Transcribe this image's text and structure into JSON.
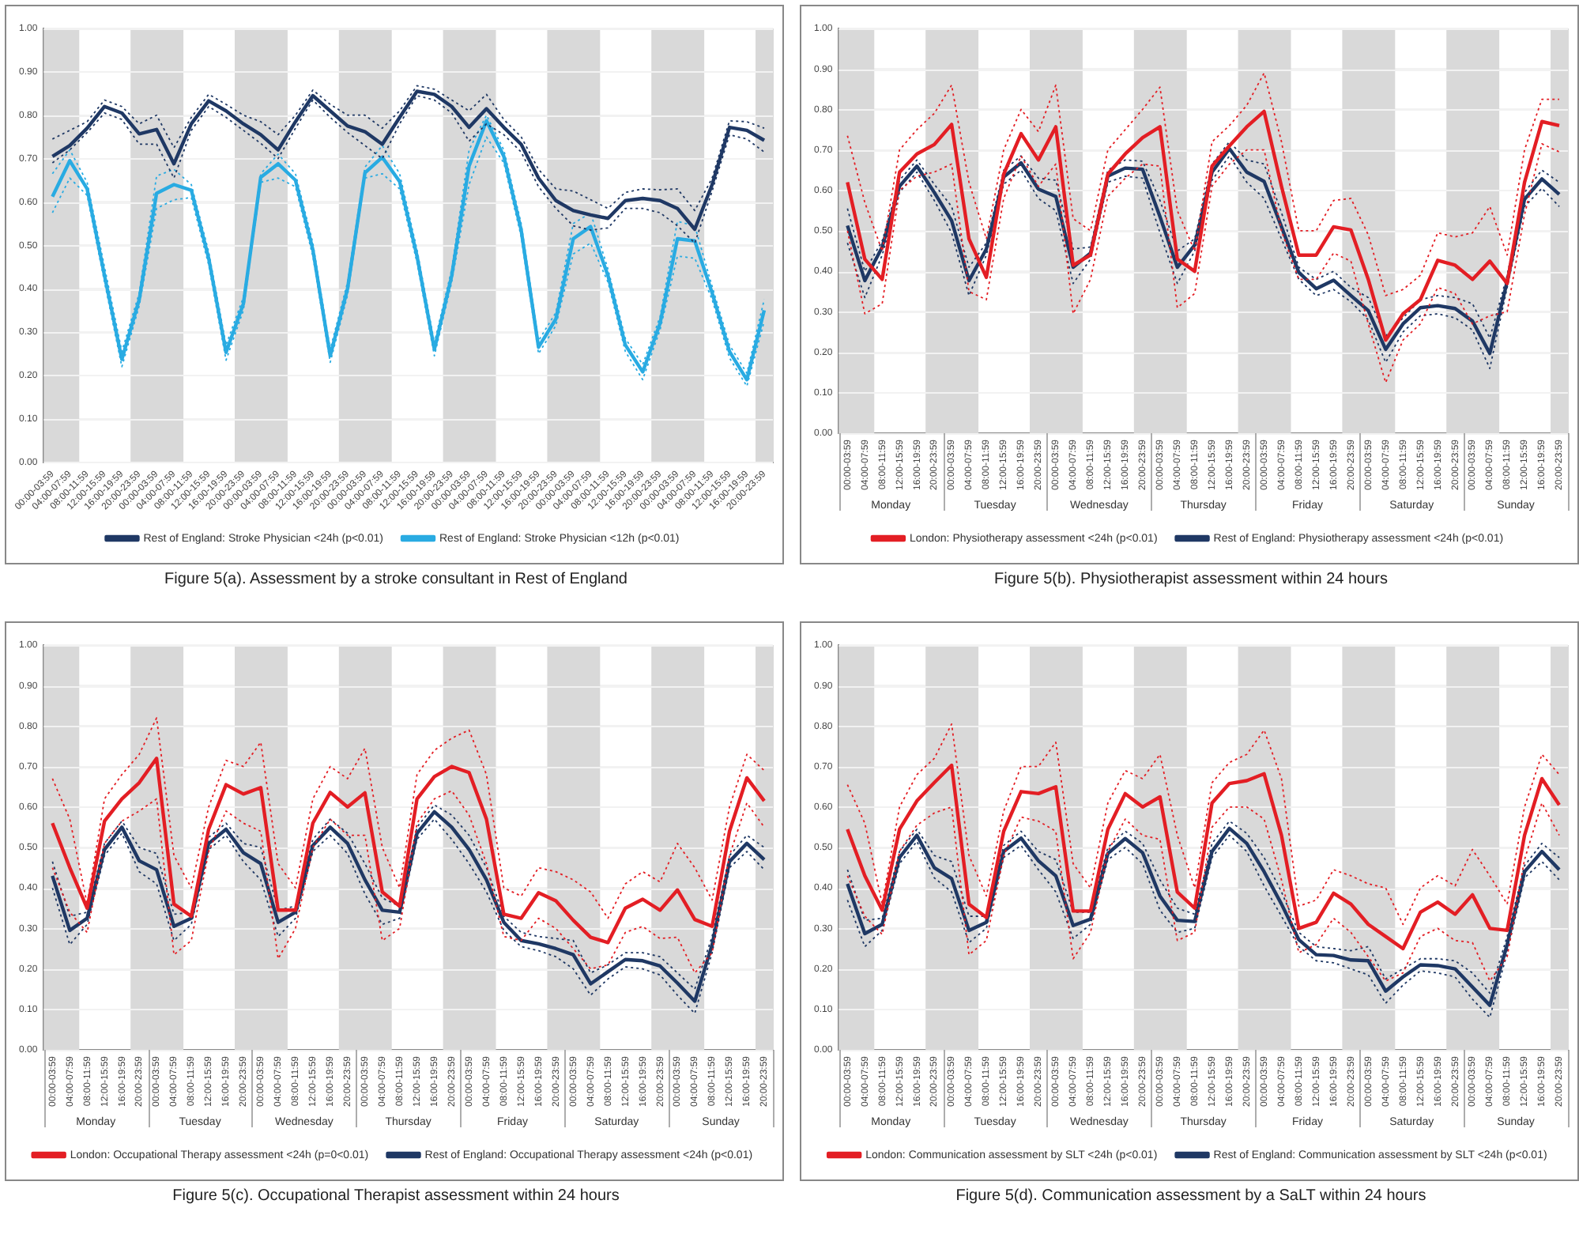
{
  "chart_data": [
    {
      "type": "line",
      "title": "Figure 5(a). Assessment by a stroke consultant in Rest of England",
      "categories": [
        "00:00-03:59",
        "04:00-07:59",
        "08:00-11:59",
        "12:00-15:59",
        "16:00-19:59",
        "20:00-23:59",
        "00:00-03:59",
        "04:00-07:59",
        "08:00-11:59",
        "12:00-15:59",
        "16:00-19:59",
        "20:00-23:59",
        "00:00-03:59",
        "04:00-07:59",
        "08:00-11:59",
        "12:00-15:59",
        "16:00-19:59",
        "20:00-23:59",
        "00:00-03:59",
        "04:00-07:59",
        "08:00-11:59",
        "12:00-15:59",
        "16:00-19:59",
        "20:00-23:59",
        "00:00-03:59",
        "04:00-07:59",
        "08:00-11:59",
        "12:00-15:59",
        "16:00-19:59",
        "20:00-23:59",
        "00:00-03:59",
        "04:00-07:59",
        "08:00-11:59",
        "12:00-15:59",
        "16:00-19:59",
        "20:00-23:59",
        "00:00-03:59",
        "04:00-07:59",
        "08:00-11:59",
        "12:00-15:59",
        "16:00-19:59",
        "20:00-23:59"
      ],
      "series": [
        {
          "name": "Rest of England: Stroke Physician <24h (p<0.01)",
          "color": "#1f3864",
          "line_style": "solid",
          "values": [
            0.705,
            0.73,
            0.77,
            0.82,
            0.805,
            0.757,
            0.767,
            0.688,
            0.78,
            0.833,
            0.81,
            0.78,
            0.755,
            0.72,
            0.785,
            0.845,
            0.81,
            0.775,
            0.762,
            0.733,
            0.795,
            0.855,
            0.848,
            0.82,
            0.772,
            0.815,
            0.772,
            0.733,
            0.655,
            0.603,
            0.58,
            0.57,
            0.562,
            0.603,
            0.608,
            0.603,
            0.585,
            0.537,
            0.64,
            0.772,
            0.765,
            0.742
          ]
        },
        {
          "color": "#1f3864",
          "line_style": "dotted",
          "values": [
            0.745,
            0.765,
            0.785,
            0.835,
            0.82,
            0.78,
            0.8,
            0.725,
            0.795,
            0.848,
            0.825,
            0.8,
            0.785,
            0.755,
            0.8,
            0.858,
            0.825,
            0.8,
            0.8,
            0.77,
            0.81,
            0.868,
            0.86,
            0.835,
            0.81,
            0.848,
            0.79,
            0.75,
            0.675,
            0.63,
            0.625,
            0.605,
            0.585,
            0.622,
            0.63,
            0.628,
            0.63,
            0.58,
            0.655,
            0.787,
            0.785,
            0.77
          ]
        },
        {
          "color": "#1f3864",
          "line_style": "dotted",
          "values": [
            0.69,
            0.72,
            0.76,
            0.805,
            0.79,
            0.733,
            0.733,
            0.655,
            0.765,
            0.82,
            0.795,
            0.765,
            0.735,
            0.7,
            0.77,
            0.835,
            0.795,
            0.76,
            0.73,
            0.7,
            0.78,
            0.845,
            0.835,
            0.805,
            0.74,
            0.78,
            0.755,
            0.715,
            0.635,
            0.585,
            0.545,
            0.535,
            0.54,
            0.585,
            0.585,
            0.575,
            0.545,
            0.505,
            0.625,
            0.755,
            0.745,
            0.715
          ]
        },
        {
          "name": "Rest of England: Stroke Physician <12h (p<0.01)",
          "color": "#29abe2",
          "line_style": "solid",
          "values": [
            0.612,
            0.695,
            0.63,
            0.43,
            0.237,
            0.375,
            0.62,
            0.64,
            0.627,
            0.47,
            0.253,
            0.365,
            0.657,
            0.688,
            0.65,
            0.49,
            0.245,
            0.4,
            0.667,
            0.703,
            0.647,
            0.475,
            0.26,
            0.43,
            0.683,
            0.787,
            0.705,
            0.535,
            0.265,
            0.33,
            0.515,
            0.543,
            0.43,
            0.27,
            0.208,
            0.32,
            0.515,
            0.51,
            0.39,
            0.255,
            0.19,
            0.35
          ]
        },
        {
          "color": "#29abe2",
          "line_style": "dotted",
          "values": [
            0.665,
            0.72,
            0.645,
            0.45,
            0.255,
            0.39,
            0.66,
            0.675,
            0.64,
            0.485,
            0.27,
            0.38,
            0.665,
            0.71,
            0.665,
            0.505,
            0.26,
            0.415,
            0.68,
            0.73,
            0.665,
            0.49,
            0.275,
            0.445,
            0.72,
            0.8,
            0.72,
            0.55,
            0.28,
            0.345,
            0.55,
            0.575,
            0.445,
            0.285,
            0.225,
            0.335,
            0.555,
            0.545,
            0.405,
            0.27,
            0.205,
            0.375
          ]
        },
        {
          "color": "#29abe2",
          "line_style": "dotted",
          "values": [
            0.575,
            0.655,
            0.615,
            0.415,
            0.22,
            0.36,
            0.585,
            0.605,
            0.61,
            0.455,
            0.235,
            0.35,
            0.645,
            0.655,
            0.635,
            0.475,
            0.23,
            0.385,
            0.655,
            0.665,
            0.63,
            0.46,
            0.245,
            0.415,
            0.64,
            0.75,
            0.69,
            0.52,
            0.25,
            0.315,
            0.48,
            0.505,
            0.415,
            0.255,
            0.19,
            0.305,
            0.475,
            0.47,
            0.375,
            0.24,
            0.175,
            0.325
          ]
        }
      ],
      "ylim": [
        0,
        1
      ],
      "yticks": [
        {
          "value": 0,
          "label": "0.00"
        },
        {
          "value": 0.1,
          "label": "0.10"
        },
        {
          "value": 0.2,
          "label": "0.20"
        },
        {
          "value": 0.3,
          "label": "0.30"
        },
        {
          "value": 0.4,
          "label": "0.40"
        },
        {
          "value": 0.5,
          "label": "0.50"
        },
        {
          "value": 0.6,
          "label": "0.60"
        },
        {
          "value": 0.7,
          "label": "0.70"
        },
        {
          "value": 0.8,
          "label": "0.80"
        },
        {
          "value": 0.9,
          "label": "0.90"
        },
        {
          "value": 1,
          "label": "1.00"
        }
      ],
      "grid": "y",
      "legend": "bottom",
      "marker": "none"
    },
    {
      "type": "line",
      "title": "Figure 5(b). Physiotherapist assessment within 24 hours",
      "categories": [
        "00:00-03:59",
        "04:00-07:59",
        "08:00-11:59",
        "12:00-15:59",
        "16:00-19:59",
        "20:00-23:59",
        "00:00-03:59",
        "04:00-07:59",
        "08:00-11:59",
        "12:00-15:59",
        "16:00-19:59",
        "20:00-23:59",
        "00:00-03:59",
        "04:00-07:59",
        "08:00-11:59",
        "12:00-15:59",
        "16:00-19:59",
        "20:00-23:59",
        "00:00-03:59",
        "04:00-07:59",
        "08:00-11:59",
        "12:00-15:59",
        "16:00-19:59",
        "20:00-23:59",
        "00:00-03:59",
        "04:00-07:59",
        "08:00-11:59",
        "12:00-15:59",
        "16:00-19:59",
        "20:00-23:59",
        "00:00-03:59",
        "04:00-07:59",
        "08:00-11:59",
        "12:00-15:59",
        "16:00-19:59",
        "20:00-23:59",
        "00:00-03:59",
        "04:00-07:59",
        "08:00-11:59",
        "12:00-15:59",
        "16:00-19:59",
        "20:00-23:59"
      ],
      "series": [
        {
          "name": "London: Physiotherapy assessment <24h (p<0.01)",
          "color": "#e31e24",
          "line_style": "solid",
          "values": [
            0.62,
            0.43,
            0.38,
            0.645,
            0.69,
            0.713,
            0.763,
            0.48,
            0.385,
            0.64,
            0.74,
            0.675,
            0.757,
            0.415,
            0.44,
            0.64,
            0.69,
            0.73,
            0.757,
            0.43,
            0.4,
            0.66,
            0.71,
            0.757,
            0.795,
            0.61,
            0.44,
            0.44,
            0.51,
            0.502,
            0.38,
            0.23,
            0.295,
            0.33,
            0.427,
            0.415,
            0.38,
            0.425,
            0.37,
            0.62,
            0.77,
            0.76
          ]
        },
        {
          "color": "#e31e24",
          "line_style": "dotted",
          "values": [
            0.735,
            0.57,
            0.45,
            0.7,
            0.75,
            0.79,
            0.86,
            0.62,
            0.48,
            0.7,
            0.8,
            0.745,
            0.86,
            0.53,
            0.5,
            0.7,
            0.75,
            0.8,
            0.855,
            0.55,
            0.45,
            0.72,
            0.76,
            0.81,
            0.89,
            0.72,
            0.5,
            0.5,
            0.575,
            0.58,
            0.49,
            0.34,
            0.355,
            0.39,
            0.495,
            0.485,
            0.495,
            0.56,
            0.44,
            0.7,
            0.825,
            0.825
          ]
        },
        {
          "color": "#e31e24",
          "line_style": "dotted",
          "values": [
            0.5,
            0.295,
            0.32,
            0.6,
            0.635,
            0.645,
            0.665,
            0.35,
            0.33,
            0.58,
            0.685,
            0.61,
            0.665,
            0.295,
            0.38,
            0.585,
            0.63,
            0.665,
            0.66,
            0.31,
            0.345,
            0.61,
            0.665,
            0.7,
            0.7,
            0.5,
            0.38,
            0.38,
            0.445,
            0.425,
            0.27,
            0.125,
            0.23,
            0.27,
            0.36,
            0.345,
            0.27,
            0.29,
            0.3,
            0.54,
            0.715,
            0.695
          ]
        },
        {
          "name": "Rest of England: Physiotherapy assessment <24h (p<0.01)",
          "color": "#1f3864",
          "line_style": "solid",
          "values": [
            0.513,
            0.377,
            0.46,
            0.61,
            0.66,
            0.595,
            0.525,
            0.377,
            0.455,
            0.633,
            0.668,
            0.603,
            0.585,
            0.41,
            0.445,
            0.635,
            0.655,
            0.652,
            0.535,
            0.41,
            0.465,
            0.645,
            0.703,
            0.645,
            0.622,
            0.51,
            0.397,
            0.357,
            0.378,
            0.34,
            0.303,
            0.207,
            0.27,
            0.31,
            0.315,
            0.308,
            0.277,
            0.197,
            0.375,
            0.578,
            0.628,
            0.59
          ]
        },
        {
          "color": "#1f3864",
          "line_style": "dotted",
          "values": [
            0.555,
            0.4,
            0.475,
            0.625,
            0.675,
            0.615,
            0.56,
            0.41,
            0.47,
            0.65,
            0.685,
            0.63,
            0.625,
            0.455,
            0.46,
            0.65,
            0.675,
            0.672,
            0.575,
            0.45,
            0.48,
            0.665,
            0.72,
            0.675,
            0.665,
            0.545,
            0.41,
            0.38,
            0.4,
            0.36,
            0.335,
            0.24,
            0.285,
            0.33,
            0.34,
            0.335,
            0.32,
            0.235,
            0.39,
            0.595,
            0.65,
            0.62
          ]
        },
        {
          "color": "#1f3864",
          "line_style": "dotted",
          "values": [
            0.47,
            0.335,
            0.44,
            0.595,
            0.645,
            0.575,
            0.495,
            0.34,
            0.44,
            0.615,
            0.65,
            0.58,
            0.55,
            0.37,
            0.43,
            0.62,
            0.635,
            0.63,
            0.495,
            0.37,
            0.45,
            0.625,
            0.685,
            0.62,
            0.58,
            0.48,
            0.38,
            0.34,
            0.355,
            0.325,
            0.28,
            0.175,
            0.25,
            0.29,
            0.295,
            0.285,
            0.255,
            0.16,
            0.36,
            0.56,
            0.605,
            0.56
          ]
        }
      ],
      "ylim": [
        0,
        1
      ],
      "yticks": [
        {
          "value": 0,
          "label": "0.00"
        },
        {
          "value": 0.1,
          "label": "0.10"
        },
        {
          "value": 0.2,
          "label": "0.20"
        },
        {
          "value": 0.3,
          "label": "0.30"
        },
        {
          "value": 0.4,
          "label": "0.40"
        },
        {
          "value": 0.5,
          "label": "0.50"
        },
        {
          "value": 0.6,
          "label": "0.60"
        },
        {
          "value": 0.7,
          "label": "0.70"
        },
        {
          "value": 0.8,
          "label": "0.80"
        },
        {
          "value": 0.9,
          "label": "0.90"
        },
        {
          "value": 1,
          "label": "1.00"
        }
      ],
      "grid": "y",
      "legend": "bottom",
      "marker": "none",
      "annotations": [
        "Monday",
        "Tuesday",
        "Wednesday",
        "Thursday",
        "Friday",
        "Saturday",
        "Sunday"
      ]
    },
    {
      "type": "line",
      "title": "Figure 5(c). Occupational Therapist assessment within 24 hours",
      "categories": [
        "00:00-03:59",
        "04:00-07:59",
        "08:00-11:59",
        "12:00-15:59",
        "16:00-19:59",
        "20:00-23:59",
        "00:00-03:59",
        "04:00-07:59",
        "08:00-11:59",
        "12:00-15:59",
        "16:00-19:59",
        "20:00-23:59",
        "00:00-03:59",
        "04:00-07:59",
        "08:00-11:59",
        "12:00-15:59",
        "16:00-19:59",
        "20:00-23:59",
        "00:00-03:59",
        "04:00-07:59",
        "08:00-11:59",
        "12:00-15:59",
        "16:00-19:59",
        "20:00-23:59",
        "00:00-03:59",
        "04:00-07:59",
        "08:00-11:59",
        "12:00-15:59",
        "16:00-19:59",
        "20:00-23:59",
        "00:00-03:59",
        "04:00-07:59",
        "08:00-11:59",
        "12:00-15:59",
        "16:00-19:59",
        "20:00-23:59",
        "00:00-03:59",
        "04:00-07:59",
        "08:00-11:59",
        "12:00-15:59",
        "16:00-19:59",
        "20:00-23:59"
      ],
      "series": [
        {
          "name": "London: Occupational Therapy assessment <24h (p=0<0.01)",
          "color": "#e31e24",
          "line_style": "solid",
          "values": [
            0.56,
            0.45,
            0.35,
            0.565,
            0.62,
            0.66,
            0.72,
            0.36,
            0.33,
            0.545,
            0.655,
            0.632,
            0.648,
            0.345,
            0.345,
            0.56,
            0.636,
            0.6,
            0.635,
            0.39,
            0.355,
            0.62,
            0.675,
            0.7,
            0.685,
            0.57,
            0.335,
            0.325,
            0.388,
            0.368,
            0.32,
            0.278,
            0.265,
            0.35,
            0.372,
            0.345,
            0.395,
            0.322,
            0.305,
            0.54,
            0.672,
            0.615
          ]
        },
        {
          "color": "#e31e24",
          "line_style": "dotted",
          "values": [
            0.67,
            0.57,
            0.36,
            0.62,
            0.68,
            0.73,
            0.82,
            0.48,
            0.4,
            0.6,
            0.715,
            0.7,
            0.76,
            0.46,
            0.4,
            0.62,
            0.7,
            0.67,
            0.745,
            0.5,
            0.4,
            0.68,
            0.74,
            0.77,
            0.79,
            0.68,
            0.4,
            0.38,
            0.45,
            0.44,
            0.42,
            0.39,
            0.325,
            0.41,
            0.44,
            0.415,
            0.51,
            0.45,
            0.37,
            0.6,
            0.73,
            0.69
          ]
        },
        {
          "color": "#e31e24",
          "line_style": "dotted",
          "values": [
            0.45,
            0.34,
            0.29,
            0.51,
            0.565,
            0.59,
            0.62,
            0.235,
            0.27,
            0.49,
            0.59,
            0.56,
            0.54,
            0.225,
            0.3,
            0.5,
            0.57,
            0.53,
            0.53,
            0.27,
            0.3,
            0.56,
            0.62,
            0.64,
            0.58,
            0.46,
            0.28,
            0.27,
            0.325,
            0.3,
            0.25,
            0.2,
            0.21,
            0.29,
            0.305,
            0.275,
            0.278,
            0.19,
            0.24,
            0.48,
            0.61,
            0.55
          ]
        },
        {
          "name": "Rest of England: Occupational Therapy assessment <24h (p<0.01)",
          "color": "#1f3864",
          "line_style": "solid",
          "values": [
            0.43,
            0.295,
            0.325,
            0.495,
            0.55,
            0.467,
            0.445,
            0.305,
            0.325,
            0.51,
            0.545,
            0.487,
            0.46,
            0.315,
            0.34,
            0.505,
            0.55,
            0.51,
            0.42,
            0.345,
            0.34,
            0.535,
            0.588,
            0.55,
            0.495,
            0.42,
            0.315,
            0.27,
            0.262,
            0.25,
            0.235,
            0.163,
            0.193,
            0.223,
            0.22,
            0.207,
            0.165,
            0.12,
            0.26,
            0.465,
            0.51,
            0.47
          ]
        },
        {
          "color": "#1f3864",
          "line_style": "dotted",
          "values": [
            0.465,
            0.33,
            0.34,
            0.51,
            0.565,
            0.5,
            0.485,
            0.335,
            0.34,
            0.525,
            0.56,
            0.51,
            0.5,
            0.345,
            0.355,
            0.52,
            0.57,
            0.535,
            0.46,
            0.375,
            0.355,
            0.55,
            0.605,
            0.58,
            0.53,
            0.45,
            0.33,
            0.29,
            0.28,
            0.275,
            0.27,
            0.19,
            0.21,
            0.24,
            0.24,
            0.23,
            0.19,
            0.15,
            0.28,
            0.48,
            0.53,
            0.5
          ]
        },
        {
          "color": "#1f3864",
          "line_style": "dotted",
          "values": [
            0.4,
            0.26,
            0.31,
            0.48,
            0.535,
            0.44,
            0.41,
            0.27,
            0.31,
            0.495,
            0.53,
            0.465,
            0.42,
            0.28,
            0.325,
            0.49,
            0.53,
            0.485,
            0.385,
            0.31,
            0.325,
            0.52,
            0.57,
            0.52,
            0.46,
            0.39,
            0.295,
            0.255,
            0.245,
            0.23,
            0.2,
            0.135,
            0.175,
            0.205,
            0.2,
            0.185,
            0.135,
            0.09,
            0.24,
            0.45,
            0.49,
            0.445
          ]
        }
      ],
      "ylim": [
        0,
        1
      ],
      "yticks": [
        {
          "value": 0,
          "label": "0.00"
        },
        {
          "value": 0.1,
          "label": "0.10"
        },
        {
          "value": 0.2,
          "label": "0.20"
        },
        {
          "value": 0.3,
          "label": "0.30"
        },
        {
          "value": 0.4,
          "label": "0.40"
        },
        {
          "value": 0.5,
          "label": "0.50"
        },
        {
          "value": 0.6,
          "label": "0.60"
        },
        {
          "value": 0.7,
          "label": "0.70"
        },
        {
          "value": 0.8,
          "label": "0.80"
        },
        {
          "value": 0.9,
          "label": "0.90"
        },
        {
          "value": 1,
          "label": "1.00"
        }
      ],
      "grid": "y",
      "legend": "bottom",
      "marker": "none",
      "annotations": [
        "Monday",
        "Tuesday",
        "Wednesday",
        "Thursday",
        "Friday",
        "Saturday",
        "Sunday"
      ]
    },
    {
      "type": "line",
      "title": "Figure 5(d). Communication assessment by a SaLT within 24 hours",
      "categories": [
        "00:00-03:59",
        "04:00-07:59",
        "08:00-11:59",
        "12:00-15:59",
        "16:00-19:59",
        "20:00-23:59",
        "00:00-03:59",
        "04:00-07:59",
        "08:00-11:59",
        "12:00-15:59",
        "16:00-19:59",
        "20:00-23:59",
        "00:00-03:59",
        "04:00-07:59",
        "08:00-11:59",
        "12:00-15:59",
        "16:00-19:59",
        "20:00-23:59",
        "00:00-03:59",
        "04:00-07:59",
        "08:00-11:59",
        "12:00-15:59",
        "16:00-19:59",
        "20:00-23:59",
        "00:00-03:59",
        "04:00-07:59",
        "08:00-11:59",
        "12:00-15:59",
        "16:00-19:59",
        "20:00-23:59",
        "00:00-03:59",
        "04:00-07:59",
        "08:00-11:59",
        "12:00-15:59",
        "16:00-19:59",
        "20:00-23:59",
        "00:00-03:59",
        "04:00-07:59",
        "08:00-11:59",
        "12:00-15:59",
        "16:00-19:59",
        "20:00-23:59"
      ],
      "series": [
        {
          "name": "London: Communication assessment by SLT <24h (p<0.01)",
          "color": "#e31e24",
          "line_style": "solid",
          "values": [
            0.545,
            0.43,
            0.345,
            0.545,
            0.615,
            0.66,
            0.703,
            0.36,
            0.327,
            0.54,
            0.638,
            0.633,
            0.65,
            0.343,
            0.343,
            0.545,
            0.633,
            0.6,
            0.625,
            0.39,
            0.35,
            0.61,
            0.658,
            0.665,
            0.682,
            0.53,
            0.3,
            0.315,
            0.387,
            0.36,
            0.31,
            0.28,
            0.25,
            0.34,
            0.365,
            0.335,
            0.383,
            0.3,
            0.295,
            0.53,
            0.67,
            0.605
          ]
        },
        {
          "color": "#e31e24",
          "line_style": "dotted",
          "values": [
            0.655,
            0.56,
            0.36,
            0.6,
            0.68,
            0.72,
            0.805,
            0.48,
            0.38,
            0.59,
            0.7,
            0.7,
            0.76,
            0.46,
            0.4,
            0.61,
            0.69,
            0.67,
            0.73,
            0.53,
            0.4,
            0.66,
            0.71,
            0.73,
            0.79,
            0.67,
            0.355,
            0.37,
            0.445,
            0.43,
            0.41,
            0.4,
            0.31,
            0.4,
            0.43,
            0.405,
            0.495,
            0.43,
            0.36,
            0.6,
            0.73,
            0.68
          ]
        },
        {
          "color": "#e31e24",
          "line_style": "dotted",
          "values": [
            0.43,
            0.33,
            0.285,
            0.49,
            0.555,
            0.585,
            0.6,
            0.235,
            0.27,
            0.48,
            0.575,
            0.565,
            0.54,
            0.225,
            0.29,
            0.49,
            0.57,
            0.53,
            0.52,
            0.27,
            0.29,
            0.55,
            0.6,
            0.6,
            0.57,
            0.42,
            0.24,
            0.26,
            0.325,
            0.29,
            0.23,
            0.17,
            0.19,
            0.28,
            0.3,
            0.27,
            0.265,
            0.17,
            0.23,
            0.47,
            0.61,
            0.53
          ]
        },
        {
          "name": "Rest of England: Communication assessment by SLT <24h (p<0.01)",
          "color": "#1f3864",
          "line_style": "solid",
          "values": [
            0.41,
            0.287,
            0.31,
            0.475,
            0.53,
            0.45,
            0.423,
            0.295,
            0.315,
            0.49,
            0.523,
            0.467,
            0.43,
            0.307,
            0.323,
            0.485,
            0.522,
            0.487,
            0.38,
            0.32,
            0.317,
            0.49,
            0.547,
            0.51,
            0.44,
            0.36,
            0.272,
            0.235,
            0.233,
            0.222,
            0.22,
            0.145,
            0.18,
            0.21,
            0.208,
            0.2,
            0.155,
            0.11,
            0.26,
            0.44,
            0.49,
            0.445
          ]
        },
        {
          "color": "#1f3864",
          "line_style": "dotted",
          "values": [
            0.445,
            0.32,
            0.325,
            0.49,
            0.545,
            0.48,
            0.465,
            0.33,
            0.33,
            0.505,
            0.54,
            0.49,
            0.47,
            0.34,
            0.34,
            0.5,
            0.54,
            0.51,
            0.42,
            0.35,
            0.335,
            0.51,
            0.565,
            0.535,
            0.475,
            0.39,
            0.29,
            0.255,
            0.25,
            0.245,
            0.255,
            0.175,
            0.2,
            0.225,
            0.225,
            0.22,
            0.19,
            0.14,
            0.28,
            0.455,
            0.51,
            0.475
          ]
        },
        {
          "color": "#1f3864",
          "line_style": "dotted",
          "values": [
            0.37,
            0.255,
            0.295,
            0.46,
            0.515,
            0.425,
            0.39,
            0.265,
            0.3,
            0.475,
            0.505,
            0.445,
            0.39,
            0.275,
            0.31,
            0.47,
            0.5,
            0.46,
            0.345,
            0.29,
            0.3,
            0.475,
            0.53,
            0.49,
            0.405,
            0.33,
            0.255,
            0.22,
            0.215,
            0.2,
            0.185,
            0.115,
            0.16,
            0.195,
            0.19,
            0.18,
            0.125,
            0.08,
            0.24,
            0.425,
            0.465,
            0.42
          ]
        }
      ],
      "ylim": [
        0,
        1
      ],
      "yticks": [
        {
          "value": 0,
          "label": "0.00"
        },
        {
          "value": 0.1,
          "label": "0.10"
        },
        {
          "value": 0.2,
          "label": "0.20"
        },
        {
          "value": 0.3,
          "label": "0.30"
        },
        {
          "value": 0.4,
          "label": "0.40"
        },
        {
          "value": 0.5,
          "label": "0.50"
        },
        {
          "value": 0.6,
          "label": "0.60"
        },
        {
          "value": 0.7,
          "label": "0.70"
        },
        {
          "value": 0.8,
          "label": "0.80"
        },
        {
          "value": 0.9,
          "label": "0.90"
        },
        {
          "value": 1,
          "label": "1.00"
        }
      ],
      "grid": "y",
      "legend": "bottom",
      "marker": "none",
      "annotations": [
        "Monday",
        "Tuesday",
        "Wednesday",
        "Thursday",
        "Friday",
        "Saturday",
        "Sunday"
      ]
    }
  ]
}
